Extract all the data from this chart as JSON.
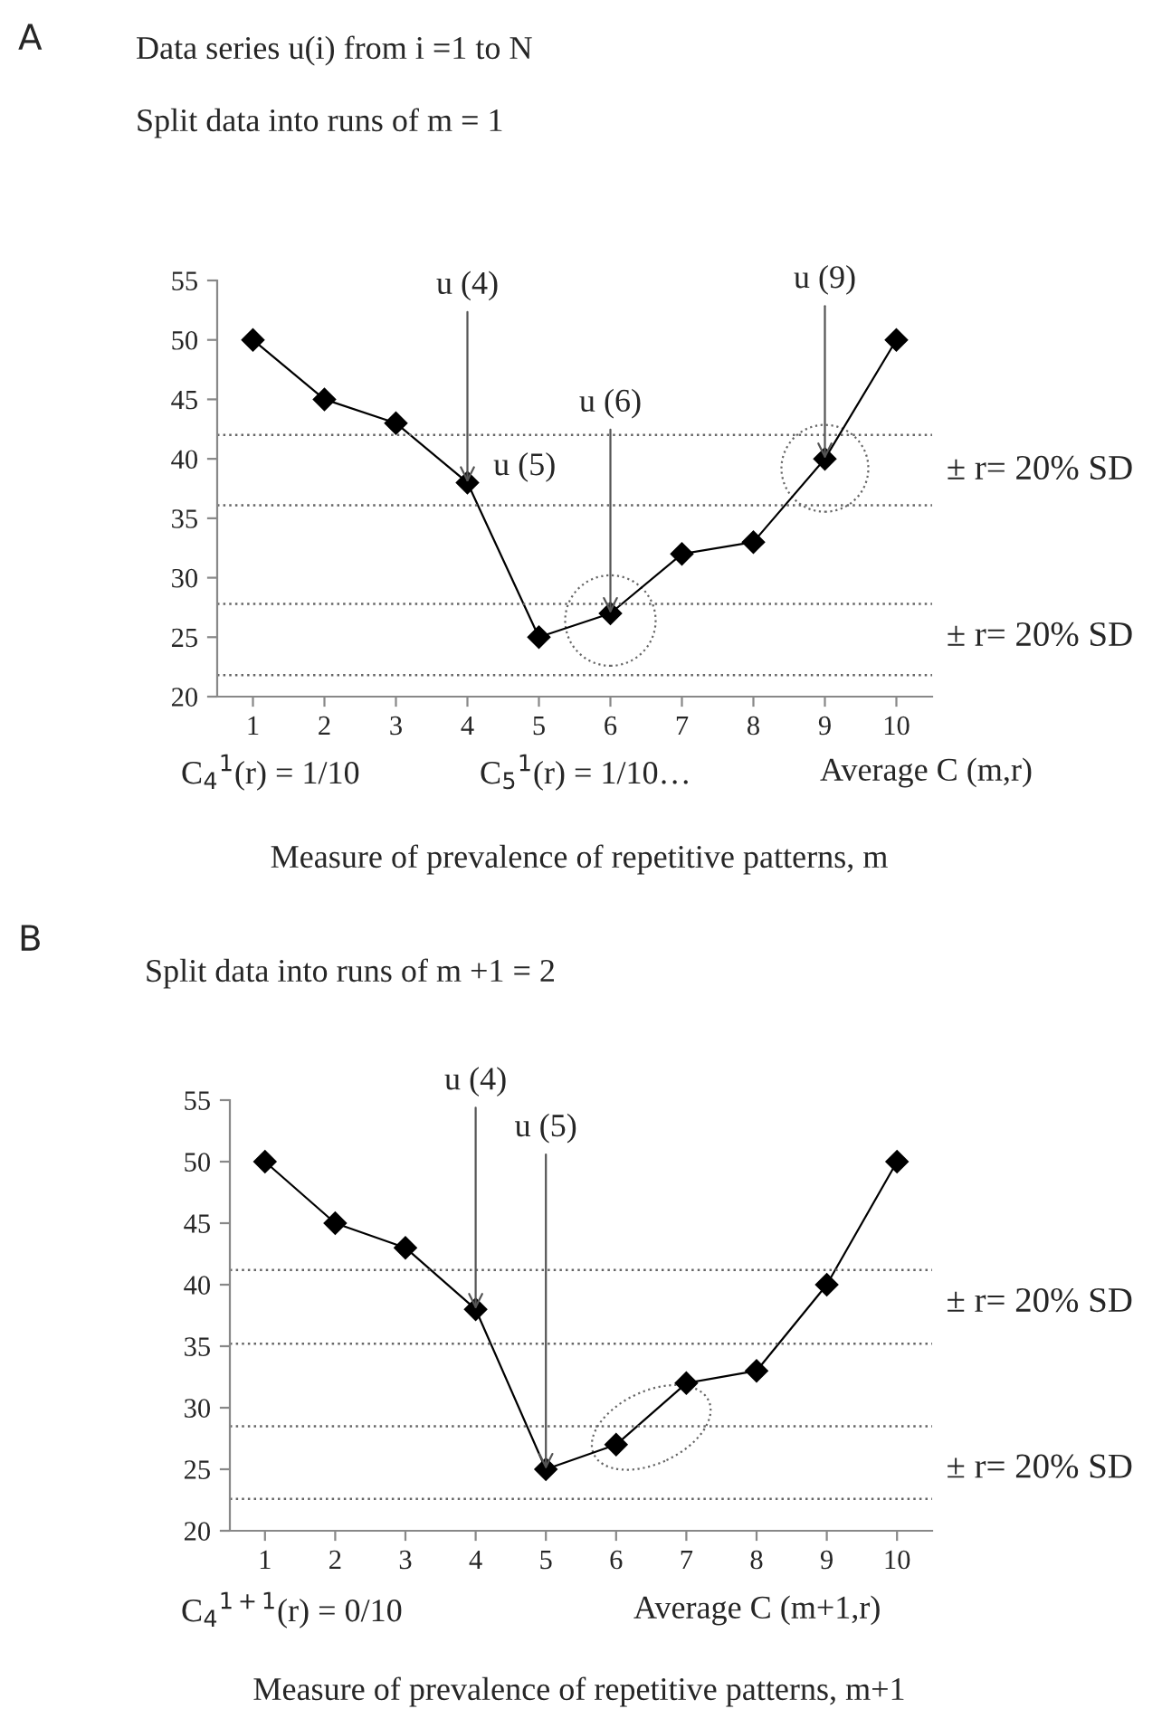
{
  "chart_data": [
    {
      "type": "line",
      "title": "Data series u(i) from i =1 to N",
      "subtitle": "Split data into runs of m = 1",
      "xlabel": "Measure of prevalence of repetitive patterns, m",
      "categories": [
        "1",
        "2",
        "3",
        "4",
        "5",
        "6",
        "7",
        "8",
        "9",
        "10"
      ],
      "series": [
        {
          "color": "#000000",
          "values": [
            50,
            45,
            43,
            38,
            25,
            27,
            32,
            33,
            40,
            50
          ]
        }
      ],
      "ylim": [
        20,
        55
      ],
      "yticks": [
        20,
        25,
        30,
        35,
        40,
        45,
        50,
        55
      ],
      "marker": "diamond",
      "line_style": "solid",
      "ref_lines": [
        {
          "axis": "y",
          "value": 42,
          "line_style": "dotted"
        },
        {
          "axis": "y",
          "value": 36.1,
          "line_style": "dotted"
        },
        {
          "axis": "y",
          "value": 27.8,
          "line_style": "dotted"
        },
        {
          "axis": "y",
          "value": 21.8,
          "line_style": "dotted"
        }
      ],
      "annotations": [
        "A",
        {
          "text": "u (4)",
          "x": "4",
          "y": 38
        },
        "u (5)",
        {
          "text": "u (6)",
          "x": "6",
          "y": 27
        },
        {
          "text": "u (9)",
          "x": "9",
          "y": 40
        },
        "± r= 20% SD",
        "± r= 20% SD",
        "C$_{4}$$^{1}$(r) = 1/10",
        "C$_{5}$$^{1}$(r) = 1/10…",
        "Average C (m,r)"
      ]
    },
    {
      "type": "line",
      "title": "Split data into runs of m +1 = 2",
      "xlabel": "Measure of prevalence of repetitive patterns, m+1",
      "categories": [
        "1",
        "2",
        "3",
        "4",
        "5",
        "6",
        "7",
        "8",
        "9",
        "10"
      ],
      "series": [
        {
          "color": "#000000",
          "values": [
            50,
            45,
            43,
            38,
            25,
            27,
            32,
            33,
            40,
            50
          ]
        }
      ],
      "ylim": [
        20,
        55
      ],
      "yticks": [
        20,
        25,
        30,
        35,
        40,
        45,
        50,
        55
      ],
      "marker": "diamond",
      "line_style": "solid",
      "ref_lines": [
        {
          "axis": "y",
          "value": 41.2,
          "line_style": "dotted"
        },
        {
          "axis": "y",
          "value": 35.2,
          "line_style": "dotted"
        },
        {
          "axis": "y",
          "value": 28.5,
          "line_style": "dotted"
        },
        {
          "axis": "y",
          "value": 22.6,
          "line_style": "dotted"
        }
      ],
      "annotations": [
        "B",
        {
          "text": "u (4)",
          "x": "4",
          "y": 38
        },
        {
          "text": "u (5)",
          "x": "5",
          "y": 25
        },
        "± r= 20% SD",
        "± r= 20% SD",
        "C$_{4}$$^{1+1}$(r) = 0/10",
        "Average C (m+1,r)"
      ]
    }
  ]
}
